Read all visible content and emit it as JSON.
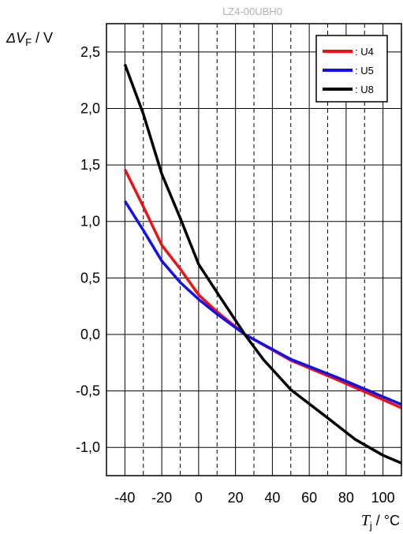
{
  "watermark": "LZ4-00UBH0",
  "chart_data": {
    "type": "line",
    "title": "",
    "ylabel": {
      "symbol": "ΔV",
      "subscript": "F",
      "unit": " / V"
    },
    "xlabel": {
      "symbol": "T",
      "subscript": "j",
      "unit": " / °C"
    },
    "xlim": [
      -50,
      110
    ],
    "ylim": [
      -1.25,
      2.75
    ],
    "x_ticks": [
      -40,
      -20,
      0,
      20,
      40,
      60,
      80,
      100
    ],
    "x_tick_labels": [
      "-40",
      "-20",
      "0",
      "20",
      "40",
      "60",
      "80",
      "100"
    ],
    "x_minor_grid": [
      -30,
      -10,
      10,
      30,
      50,
      70,
      90
    ],
    "y_ticks": [
      2.5,
      2.0,
      1.5,
      1.0,
      0.5,
      0.0,
      -0.5,
      -1.0
    ],
    "y_tick_labels": [
      "2,5",
      "2,0",
      "1,5",
      "1,0",
      "0,5",
      "0,0",
      "-0,5",
      "-1,0"
    ],
    "grid": true,
    "legend_position": "top-right",
    "series": [
      {
        "name": ": U4",
        "color": "#ee1111",
        "x": [
          -40,
          -30,
          -20,
          -10,
          0,
          10,
          25,
          50,
          75,
          110
        ],
        "y": [
          1.46,
          1.13,
          0.79,
          0.58,
          0.35,
          0.2,
          0.0,
          -0.23,
          -0.4,
          -0.65
        ]
      },
      {
        "name": ": U5",
        "color": "#1111ee",
        "x": [
          -40,
          -30,
          -20,
          -10,
          0,
          10,
          25,
          50,
          75,
          110
        ],
        "y": [
          1.18,
          0.92,
          0.65,
          0.46,
          0.31,
          0.18,
          0.0,
          -0.22,
          -0.38,
          -0.62
        ]
      },
      {
        "name": ": U8",
        "color": "#000000",
        "x": [
          -40,
          -30,
          -20,
          -10,
          0,
          10,
          25,
          35,
          50,
          70,
          85,
          100,
          110
        ],
        "y": [
          2.39,
          1.95,
          1.42,
          1.03,
          0.62,
          0.37,
          0.0,
          -0.22,
          -0.49,
          -0.74,
          -0.93,
          -1.07,
          -1.14
        ]
      }
    ]
  }
}
